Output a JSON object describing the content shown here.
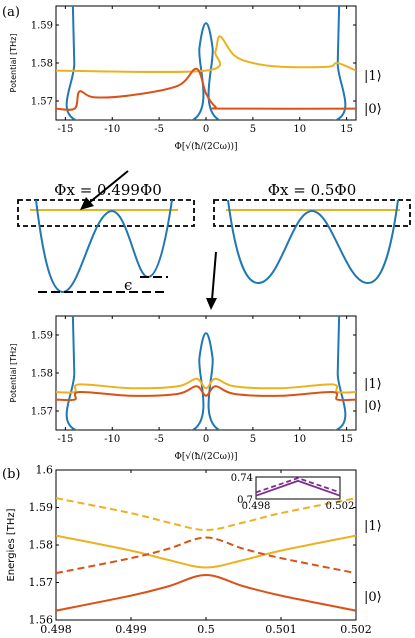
{
  "panels": {
    "a_label": "(a)",
    "b_label": "(b)"
  },
  "middle": {
    "left_title": "Φx = 0.499Φ0",
    "right_title": "Φx = 0.5Φ0",
    "epsilon": "ϵ"
  },
  "colors": {
    "blue": "#1f77b4",
    "ket0": "#d95319",
    "ket1": "#edb120",
    "inset": "#7e2f8e"
  },
  "chart_data": [
    {
      "type": "line",
      "ylabel": "Potential [THz]",
      "xlabel": "Φ[√(ħ/(2Cω))]",
      "xlim": [
        -16,
        16
      ],
      "ylim": [
        1.565,
        1.595
      ],
      "xticks": [
        "-15",
        "-10",
        "-5",
        "0",
        "5",
        "10",
        "15"
      ],
      "yticks": [
        "1.57",
        "1.58",
        "1.59"
      ],
      "state_labels": [
        "|1⟩",
        "|0⟩"
      ],
      "series": [
        {
          "color": "blue",
          "x": [
            -14.2,
            -14.05,
            -13.9,
            -1.4,
            -0.7,
            0,
            0.7,
            1.4,
            13.9,
            14.05,
            14.2
          ],
          "y": [
            1.595,
            1.58,
            1.565,
            1.565,
            1.584,
            1.5905,
            1.584,
            1.565,
            1.565,
            1.58,
            1.595
          ]
        },
        {
          "color": "ket1",
          "x": [
            -16,
            0,
            1,
            1.5,
            3,
            5,
            8,
            13,
            14,
            16
          ],
          "y": [
            1.578,
            1.578,
            1.583,
            1.587,
            1.582,
            1.58,
            1.579,
            1.579,
            1.58,
            1.578
          ]
        },
        {
          "color": "ket0",
          "x": [
            -16,
            -14,
            -13.5,
            -12,
            -8,
            -3,
            -1,
            0,
            1,
            2,
            16
          ],
          "y": [
            1.568,
            1.568,
            1.5725,
            1.571,
            1.5715,
            1.574,
            1.5785,
            1.572,
            1.5685,
            1.568,
            1.568
          ]
        }
      ]
    },
    {
      "type": "line",
      "ylabel": "Potential [THz]",
      "xlabel": "Φ[√(ħ/(2Cω))]",
      "xlim": [
        -16,
        16
      ],
      "ylim": [
        1.565,
        1.595
      ],
      "xticks": [
        "-15",
        "-10",
        "-5",
        "0",
        "5",
        "10",
        "15"
      ],
      "yticks": [
        "1.57",
        "1.58",
        "1.59"
      ],
      "state_labels": [
        "|1⟩",
        "|0⟩"
      ],
      "series": [
        {
          "color": "blue",
          "x": [
            -14.2,
            -14.05,
            -13.9,
            -1.4,
            -0.7,
            0,
            0.7,
            1.4,
            13.9,
            14.05,
            14.2
          ],
          "y": [
            1.595,
            1.58,
            1.565,
            1.565,
            1.584,
            1.5905,
            1.584,
            1.565,
            1.565,
            1.58,
            1.595
          ]
        },
        {
          "color": "ket1",
          "x": [
            -16,
            -14,
            -13.5,
            -8,
            -3,
            -1,
            0,
            1,
            3,
            8,
            13.5,
            14,
            16
          ],
          "y": [
            1.575,
            1.575,
            1.577,
            1.576,
            1.5765,
            1.5785,
            1.576,
            1.5785,
            1.5765,
            1.576,
            1.577,
            1.575,
            1.575
          ]
        },
        {
          "color": "ket0",
          "x": [
            -16,
            -14,
            -13.5,
            -8,
            -3,
            -1,
            0,
            1,
            3,
            8,
            13.5,
            14,
            16
          ],
          "y": [
            1.573,
            1.573,
            1.575,
            1.574,
            1.5745,
            1.5765,
            1.574,
            1.5765,
            1.5745,
            1.574,
            1.575,
            1.573,
            1.573
          ]
        }
      ]
    },
    {
      "type": "line",
      "ylabel": "Energies [THz]",
      "xlim": [
        0.498,
        0.502
      ],
      "ylim": [
        1.56,
        1.6
      ],
      "xticks": [
        "0.498",
        "0.499",
        "0.5",
        "0.501",
        "0.502"
      ],
      "yticks": [
        "1.56",
        "1.57",
        "1.58",
        "1.59",
        "1.6"
      ],
      "state_labels": [
        "|1⟩",
        "|0⟩"
      ],
      "series": [
        {
          "color": "ket1",
          "dashed": true,
          "x": [
            0.498,
            0.499,
            0.4995,
            0.5,
            0.5005,
            0.501,
            0.502
          ],
          "y": [
            1.5925,
            1.5885,
            1.586,
            1.584,
            1.586,
            1.5885,
            1.5925
          ]
        },
        {
          "color": "ket1",
          "dashed": false,
          "x": [
            0.498,
            0.499,
            0.4995,
            0.5,
            0.5005,
            0.501,
            0.502
          ],
          "y": [
            1.5825,
            1.5785,
            1.576,
            1.574,
            1.576,
            1.5785,
            1.5825
          ]
        },
        {
          "color": "ket0",
          "dashed": true,
          "x": [
            0.498,
            0.499,
            0.4995,
            0.5,
            0.5005,
            0.501,
            0.502
          ],
          "y": [
            1.5725,
            1.5765,
            1.579,
            1.582,
            1.579,
            1.5765,
            1.5725
          ]
        },
        {
          "color": "ket0",
          "dashed": false,
          "x": [
            0.498,
            0.499,
            0.4995,
            0.5,
            0.5005,
            0.501,
            0.502
          ],
          "y": [
            1.5625,
            1.5665,
            1.569,
            1.572,
            1.569,
            1.5665,
            1.5625
          ]
        }
      ],
      "inset": {
        "xlim": [
          0.498,
          0.502
        ],
        "ylim": [
          0.7,
          0.74
        ],
        "xticks": [
          "0.498",
          "0.502"
        ],
        "yticks": [
          "0.74",
          "0.7"
        ],
        "series": [
          {
            "color": "inset",
            "dashed": true,
            "x": [
              0.498,
              0.5,
              0.502
            ],
            "y": [
              0.712,
              0.738,
              0.712
            ]
          },
          {
            "color": "inset",
            "dashed": false,
            "x": [
              0.498,
              0.5,
              0.502
            ],
            "y": [
              0.706,
              0.733,
              0.706
            ]
          }
        ]
      }
    }
  ]
}
